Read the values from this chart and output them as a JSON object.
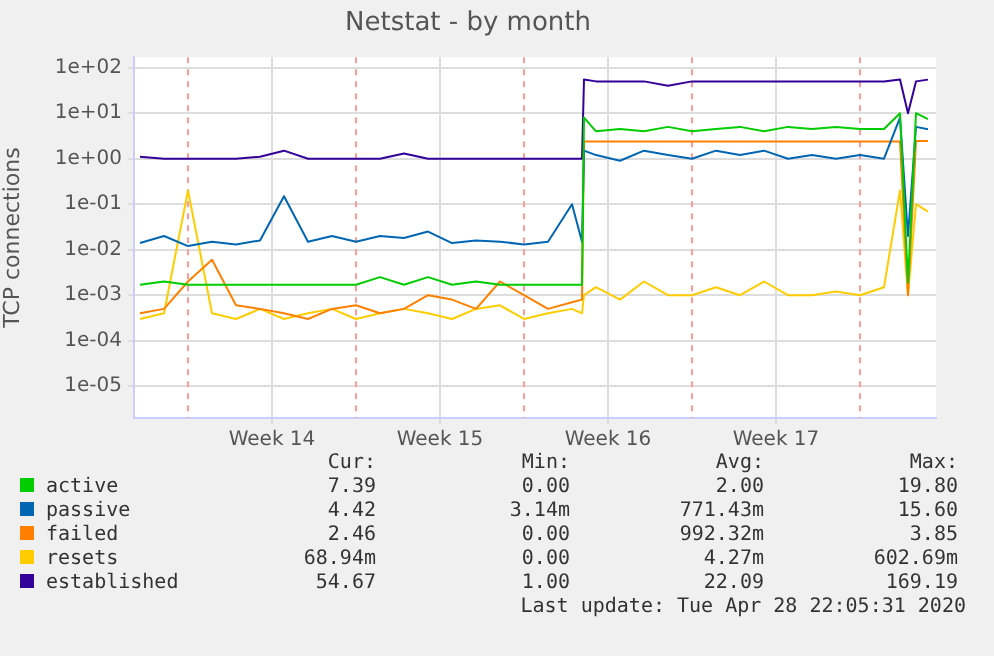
{
  "chart_data": {
    "type": "line",
    "title": "Netstat - by month",
    "ylabel": "TCP connections",
    "log": "y",
    "grid": true,
    "legend": "bottom",
    "marker": "none",
    "line_style": "solid",
    "x": [
      "2020-03-28",
      "2020-03-29",
      "2020-03-30",
      "2020-03-31",
      "2020-04-01",
      "2020-04-02",
      "2020-04-03",
      "2020-04-04",
      "2020-04-05",
      "2020-04-06",
      "2020-04-07",
      "2020-04-08",
      "2020-04-09",
      "2020-04-10",
      "2020-04-11",
      "2020-04-12",
      "2020-04-13",
      "2020-04-14",
      "2020-04-15",
      "2020-04-15T10:00",
      "2020-04-15T12:00",
      "2020-04-16",
      "2020-04-17",
      "2020-04-18",
      "2020-04-19",
      "2020-04-20",
      "2020-04-21",
      "2020-04-22",
      "2020-04-23",
      "2020-04-24",
      "2020-04-25",
      "2020-04-26",
      "2020-04-27",
      "2020-04-28",
      "2020-04-28T16:00",
      "2020-04-29",
      "2020-04-29T08:00",
      "2020-04-29T20:00"
    ],
    "xlim": [
      "2020-03-27T18:00",
      "2020-04-30T04:00"
    ],
    "xticks": [
      {
        "value": "2020-04-02T12:00",
        "label": "Week 14"
      },
      {
        "value": "2020-04-09T12:00",
        "label": "Week 15"
      },
      {
        "value": "2020-04-16T12:00",
        "label": "Week 16"
      },
      {
        "value": "2020-04-23T12:00",
        "label": "Week 17"
      }
    ],
    "ylim": [
      2e-06,
      170
    ],
    "yticks": [
      {
        "value": 1e-05,
        "label": "1e-05"
      },
      {
        "value": 0.0001,
        "label": "1e-04"
      },
      {
        "value": 0.001,
        "label": "1e-03"
      },
      {
        "value": 0.01,
        "label": "1e-02"
      },
      {
        "value": 0.1,
        "label": "1e-01"
      },
      {
        "value": 1,
        "label": "1e+00"
      },
      {
        "value": 10,
        "label": "1e+01"
      },
      {
        "value": 100,
        "label": "1e+02"
      }
    ],
    "ref_lines": [
      {
        "axis": "x",
        "value": "2020-03-30",
        "color": "#ff9a9a",
        "line_style": "dashed"
      },
      {
        "axis": "x",
        "value": "2020-04-06",
        "color": "#ff9a9a",
        "line_style": "dashed"
      },
      {
        "axis": "x",
        "value": "2020-04-13",
        "color": "#ff9a9a",
        "line_style": "dashed"
      },
      {
        "axis": "x",
        "value": "2020-04-20",
        "color": "#ff9a9a",
        "line_style": "dashed"
      },
      {
        "axis": "x",
        "value": "2020-04-27",
        "color": "#ff9a9a",
        "line_style": "dashed"
      }
    ],
    "series": [
      {
        "name": "active",
        "color": "#00cc00",
        "values": [
          0.0017,
          0.002,
          0.0017,
          0.0017,
          0.0017,
          0.0017,
          0.0017,
          0.0017,
          0.0017,
          0.0017,
          0.0025,
          0.0017,
          0.0025,
          0.0017,
          0.002,
          0.0017,
          0.0017,
          0.0017,
          0.0017,
          0.0017,
          8,
          4,
          4.5,
          4,
          5,
          4,
          4.5,
          5,
          4,
          5,
          4.5,
          5,
          4.5,
          4.5,
          10,
          0.0019,
          10,
          7.39
        ]
      },
      {
        "name": "passive",
        "color": "#0066b3",
        "values": [
          0.014,
          0.02,
          0.012,
          0.015,
          0.013,
          0.016,
          0.15,
          0.015,
          0.02,
          0.015,
          0.02,
          0.018,
          0.025,
          0.014,
          0.016,
          0.015,
          0.013,
          0.015,
          0.1,
          0.015,
          1.5,
          1.2,
          0.9,
          1.5,
          1.2,
          1,
          1.5,
          1.2,
          1.5,
          1,
          1.2,
          1,
          1.2,
          1,
          8,
          0.02,
          5,
          4.42
        ]
      },
      {
        "name": "failed",
        "color": "#ff8000",
        "values": [
          0.0004,
          0.0005,
          0.002,
          0.006,
          0.0006,
          0.0005,
          0.0004,
          0.0003,
          0.0005,
          0.0006,
          0.0004,
          0.0005,
          0.001,
          0.0008,
          0.0005,
          0.002,
          0.001,
          0.0005,
          0.0007,
          0.0008,
          2.4,
          2.4,
          2.4,
          2.4,
          2.4,
          2.4,
          2.4,
          2.4,
          2.4,
          2.4,
          2.4,
          2.4,
          2.4,
          2.4,
          2.4,
          0.001,
          2.46,
          2.46
        ]
      },
      {
        "name": "resets",
        "color": "#ffcc00",
        "values": [
          0.0003,
          0.0004,
          0.2,
          0.0004,
          0.0003,
          0.0005,
          0.0003,
          0.0004,
          0.0005,
          0.0003,
          0.0004,
          0.0005,
          0.0004,
          0.0003,
          0.0005,
          0.0006,
          0.0003,
          0.0004,
          0.0005,
          0.0004,
          0.001,
          0.0015,
          0.0008,
          0.002,
          0.001,
          0.001,
          0.0015,
          0.001,
          0.002,
          0.001,
          0.001,
          0.0012,
          0.001,
          0.0015,
          0.2,
          0.001,
          0.1,
          0.06894
        ]
      },
      {
        "name": "established",
        "color": "#330099",
        "values": [
          1.1,
          1,
          1,
          1,
          1,
          1.1,
          1.5,
          1,
          1,
          1,
          1,
          1.3,
          1,
          1,
          1,
          1,
          1,
          1,
          1,
          1,
          55,
          50,
          50,
          50,
          40,
          50,
          50,
          50,
          50,
          50,
          50,
          50,
          50,
          50,
          55,
          10,
          50,
          54.67
        ]
      }
    ],
    "annotations": [
      "Cur:",
      "Min:",
      "Avg:",
      "Max:",
      "7.39",
      "0.00",
      "2.00",
      "19.80",
      "4.42",
      "3.14m",
      "771.43m",
      "15.60",
      "2.46",
      "0.00",
      "992.32m",
      "3.85",
      "68.94m",
      "0.00",
      "4.27m",
      "602.69m",
      "54.67",
      "1.00",
      "22.09",
      "169.19",
      "Last update: Tue Apr 28 22:05:31 2020"
    ]
  }
}
